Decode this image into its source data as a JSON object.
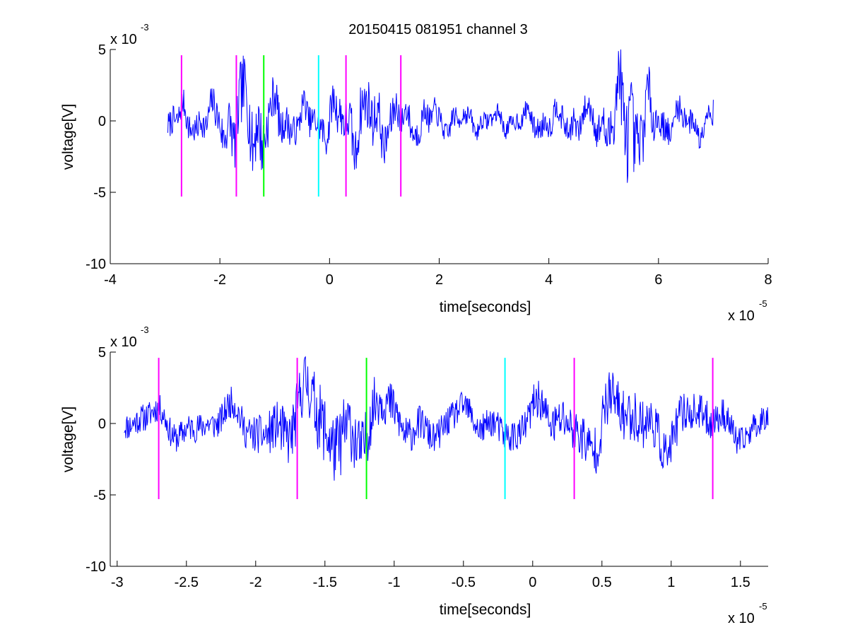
{
  "figure": {
    "title": "20150415 081951 channel 3"
  },
  "chart_data": [
    {
      "type": "line",
      "title": "20150415 081951 channel 3",
      "xlabel": "time[seconds]",
      "ylabel": "voltage[V]",
      "x_multiplier_label": "x 10",
      "x_multiplier_exp": "-5",
      "y_multiplier_label": "x 10",
      "y_multiplier_exp": "-3",
      "xlim": [
        -4,
        8
      ],
      "ylim": [
        -10,
        5
      ],
      "xticks": [
        -4,
        -2,
        0,
        2,
        4,
        6,
        8
      ],
      "xtick_labels": [
        "-4",
        "-2",
        "0",
        "2",
        "4",
        "6",
        "8"
      ],
      "yticks": [
        -10,
        -5,
        0,
        5
      ],
      "ytick_labels": [
        "-10",
        "-5",
        "0",
        "5"
      ],
      "grid": false,
      "signal": {
        "x_range": [
          -2.95,
          7.0
        ],
        "seed": 7,
        "color": "#0000ff"
      },
      "markers": [
        {
          "x": -2.7,
          "y0": -5.3,
          "y1": 4.6,
          "color": "#ff00ff"
        },
        {
          "x": -1.7,
          "y0": -5.3,
          "y1": 4.6,
          "color": "#ff00ff"
        },
        {
          "x": -1.2,
          "y0": -5.3,
          "y1": 4.6,
          "color": "#00ff00"
        },
        {
          "x": -0.2,
          "y0": -5.3,
          "y1": 4.6,
          "color": "#00ffff"
        },
        {
          "x": 0.3,
          "y0": -5.3,
          "y1": 4.6,
          "color": "#ff00ff"
        },
        {
          "x": 1.3,
          "y0": -5.3,
          "y1": 4.6,
          "color": "#ff00ff"
        }
      ]
    },
    {
      "type": "line",
      "title": "",
      "xlabel": "time[seconds]",
      "ylabel": "voltage[V]",
      "x_multiplier_label": "x 10",
      "x_multiplier_exp": "-5",
      "y_multiplier_label": "x 10",
      "y_multiplier_exp": "-3",
      "xlim": [
        -3.05,
        1.7
      ],
      "ylim": [
        -10,
        5
      ],
      "xticks": [
        -3,
        -2.5,
        -2,
        -1.5,
        -1,
        -0.5,
        0,
        0.5,
        1,
        1.5
      ],
      "xtick_labels": [
        "-3",
        "-2.5",
        "-2",
        "-1.5",
        "-1",
        "-0.5",
        "0",
        "0.5",
        "1",
        "1.5"
      ],
      "yticks": [
        -10,
        -5,
        0,
        5
      ],
      "ytick_labels": [
        "-10",
        "-5",
        "0",
        "5"
      ],
      "grid": false,
      "signal": {
        "x_range": [
          -2.95,
          1.7
        ],
        "seed": 11,
        "color": "#0000ff"
      },
      "markers": [
        {
          "x": -2.7,
          "y0": -5.3,
          "y1": 4.6,
          "color": "#ff00ff"
        },
        {
          "x": -1.7,
          "y0": -5.3,
          "y1": 4.6,
          "color": "#ff00ff"
        },
        {
          "x": -1.2,
          "y0": -5.3,
          "y1": 4.6,
          "color": "#00ff00"
        },
        {
          "x": -0.2,
          "y0": -5.3,
          "y1": 4.6,
          "color": "#00ffff"
        },
        {
          "x": 0.3,
          "y0": -5.3,
          "y1": 4.6,
          "color": "#ff00ff"
        },
        {
          "x": 1.3,
          "y0": -5.3,
          "y1": 4.6,
          "color": "#ff00ff"
        }
      ]
    }
  ]
}
